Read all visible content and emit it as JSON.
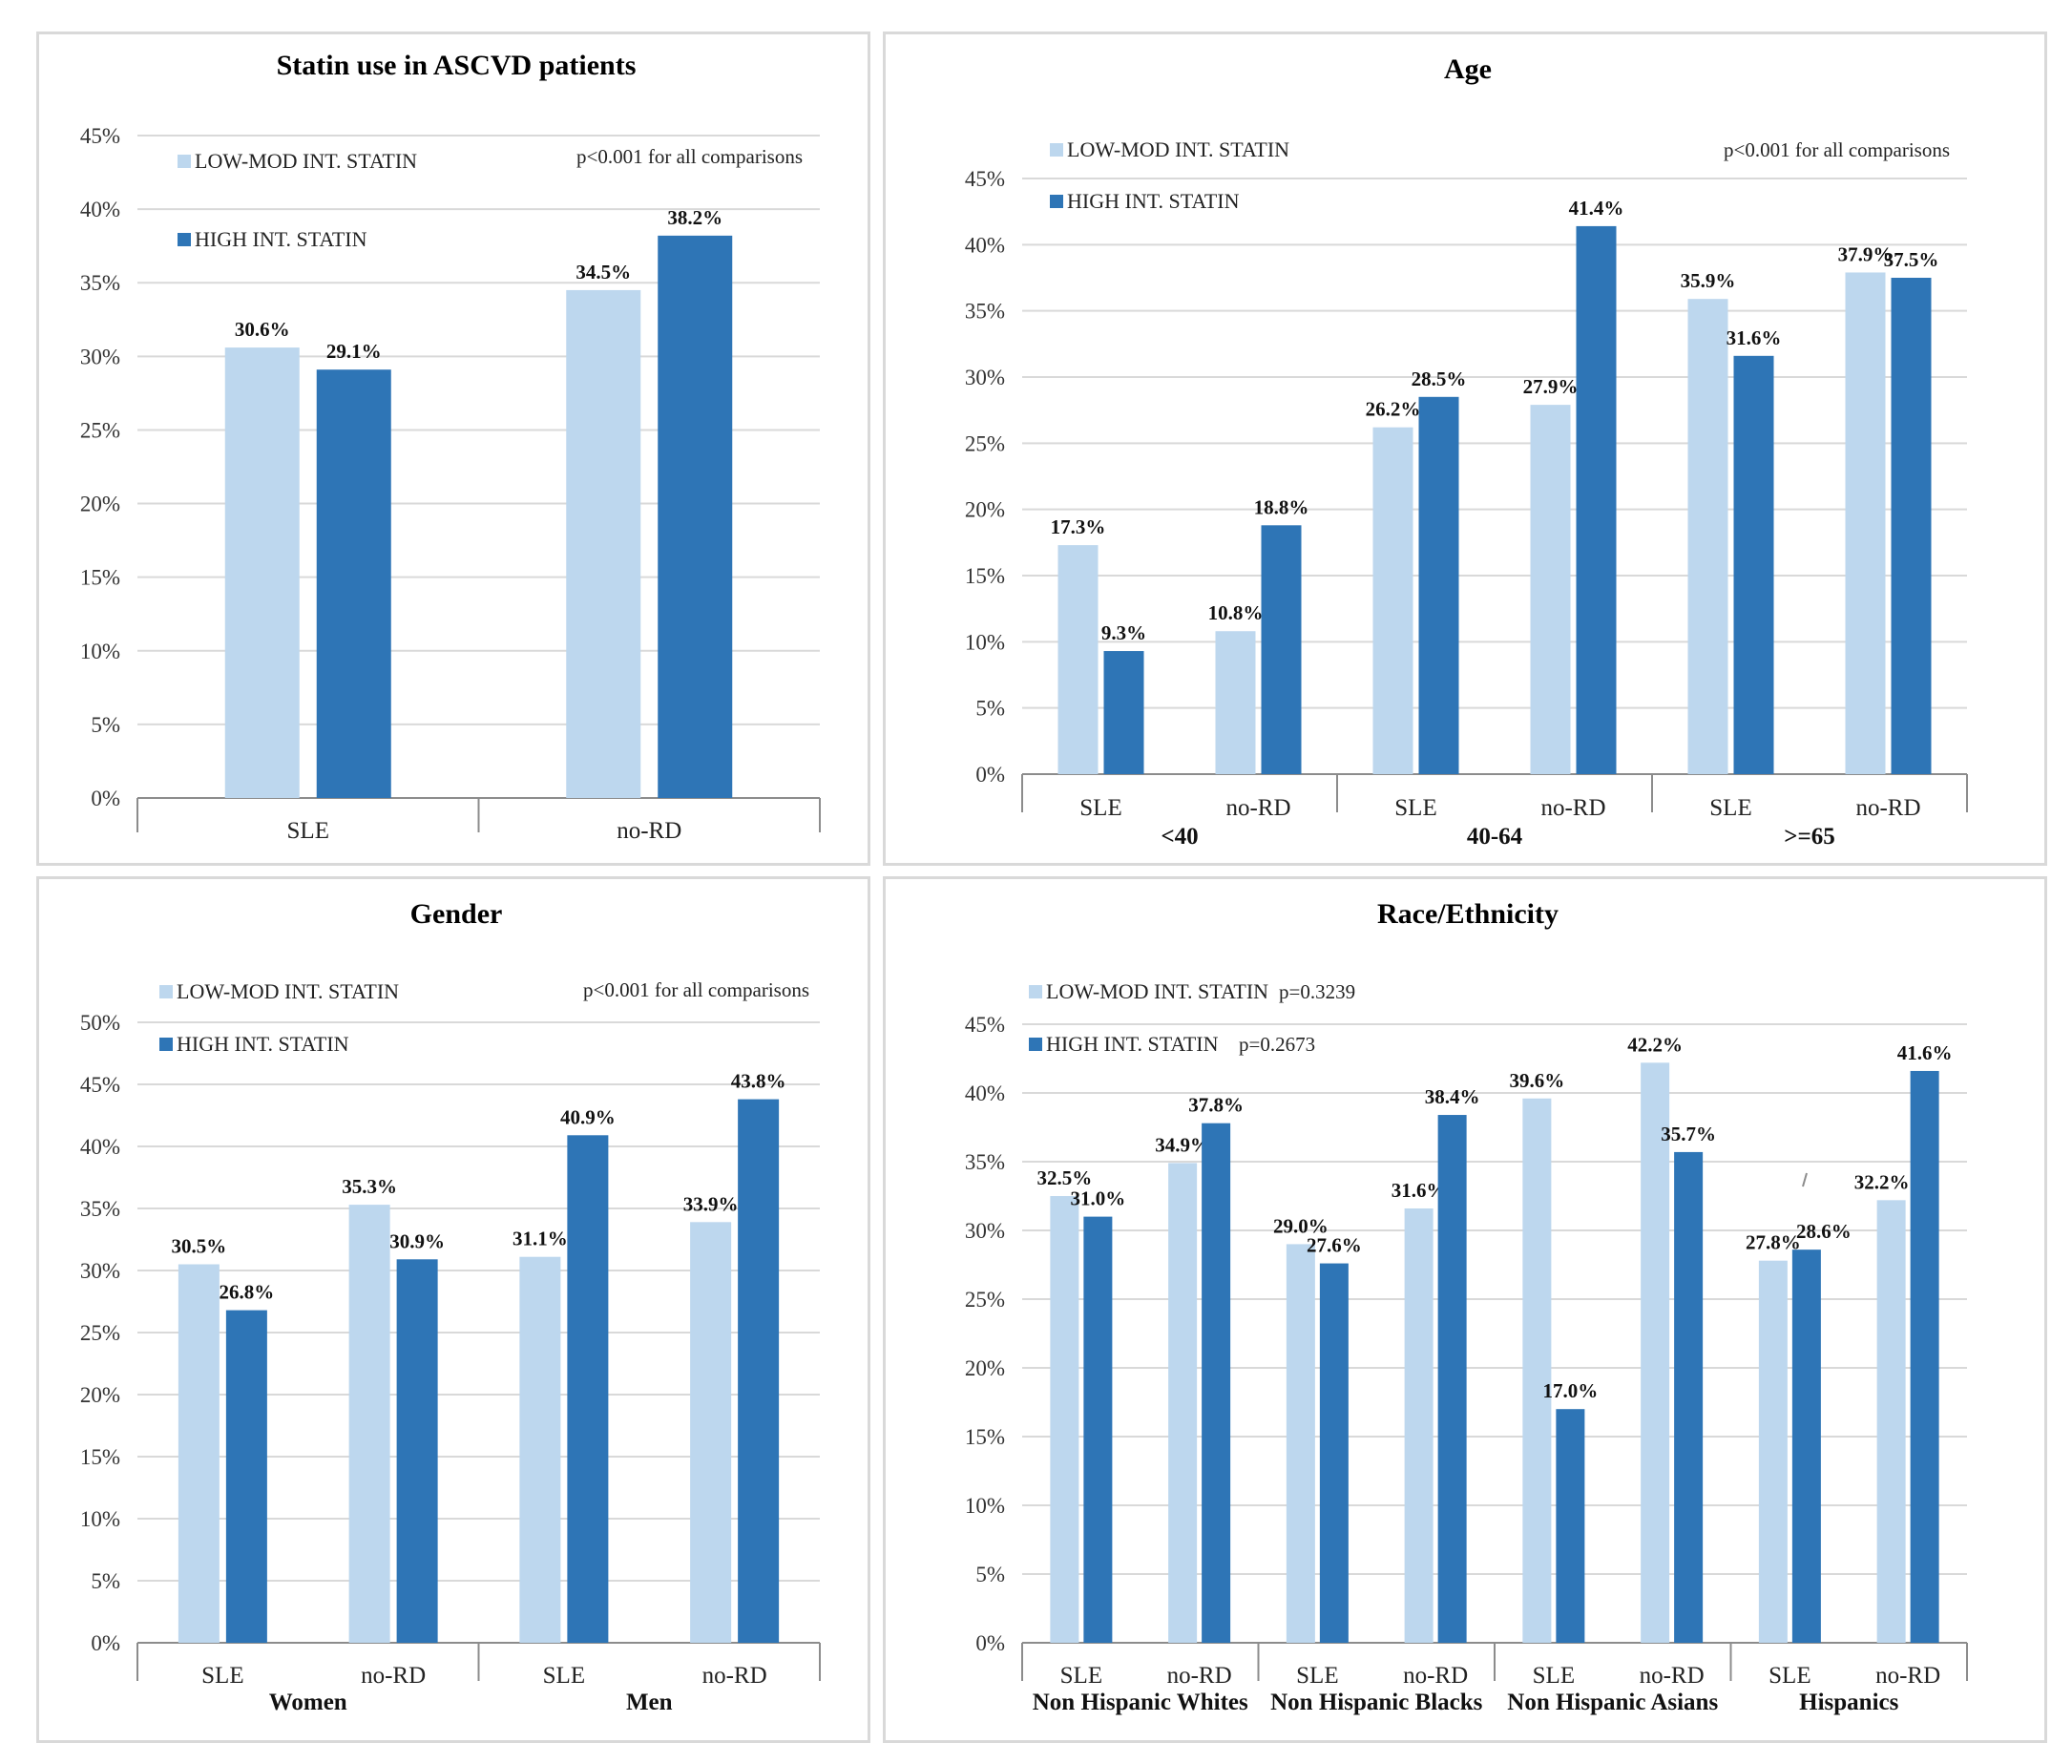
{
  "colors": {
    "low": "#bdd7ee",
    "high": "#2e75b6",
    "grid": "#d9d9d9",
    "axis": "#8c8c8c"
  },
  "legend": {
    "low": "LOW-MOD INT. STATIN",
    "high": "HIGH INT. STATIN"
  },
  "chart_data": [
    {
      "id": "statin-use",
      "type": "bar",
      "title": "Statin use in ASCVD patients",
      "note": "p<0.001 for all comparisons",
      "ylim": [
        0,
        45
      ],
      "yticks": [
        "0%",
        "5%",
        "10%",
        "15%",
        "20%",
        "25%",
        "30%",
        "35%",
        "40%",
        "45%"
      ],
      "groups": [],
      "categories": [
        "SLE",
        "no-RD"
      ],
      "series": [
        {
          "name": "LOW-MOD INT. STATIN",
          "values": [
            30.6,
            34.5
          ],
          "labels": [
            "30.6%",
            "34.5%"
          ]
        },
        {
          "name": "HIGH INT. STATIN",
          "values": [
            29.1,
            38.2
          ],
          "labels": [
            "29.1%",
            "38.2%"
          ]
        }
      ]
    },
    {
      "id": "age",
      "type": "bar",
      "title": "Age",
      "note": "p<0.001 for all comparisons",
      "ylim": [
        0,
        45
      ],
      "yticks": [
        "0%",
        "5%",
        "10%",
        "15%",
        "20%",
        "25%",
        "30%",
        "35%",
        "40%",
        "45%"
      ],
      "groups": [
        "<40",
        "40-64",
        ">=65"
      ],
      "categories": [
        "SLE",
        "no-RD",
        "SLE",
        "no-RD",
        "SLE",
        "no-RD"
      ],
      "series": [
        {
          "name": "LOW-MOD INT. STATIN",
          "values": [
            17.3,
            10.8,
            26.2,
            27.9,
            35.9,
            37.9
          ],
          "labels": [
            "17.3%",
            "10.8%",
            "26.2%",
            "27.9%",
            "35.9%",
            "37.9%"
          ]
        },
        {
          "name": "HIGH INT. STATIN",
          "values": [
            9.3,
            18.8,
            28.5,
            41.4,
            31.6,
            37.5
          ],
          "labels": [
            "9.3%",
            "18.8%",
            "28.5%",
            "41.4%",
            "31.6%",
            "37.5%"
          ]
        }
      ]
    },
    {
      "id": "gender",
      "type": "bar",
      "title": "Gender",
      "note": "p<0.001 for all comparisons",
      "ylim": [
        0,
        50
      ],
      "yticks": [
        "0%",
        "5%",
        "10%",
        "15%",
        "20%",
        "25%",
        "30%",
        "35%",
        "40%",
        "45%",
        "50%"
      ],
      "groups": [
        "Women",
        "Men"
      ],
      "categories": [
        "SLE",
        "no-RD",
        "SLE",
        "no-RD"
      ],
      "series": [
        {
          "name": "LOW-MOD INT. STATIN",
          "values": [
            30.5,
            35.3,
            31.1,
            33.9
          ],
          "labels": [
            "30.5%",
            "35.3%",
            "31.1%",
            "33.9%"
          ]
        },
        {
          "name": "HIGH INT. STATIN",
          "values": [
            26.8,
            30.9,
            40.9,
            43.8
          ],
          "labels": [
            "26.8%",
            "30.9%",
            "40.9%",
            "43.8%"
          ]
        }
      ]
    },
    {
      "id": "race",
      "type": "bar",
      "title": "Race/Ethnicity",
      "note": "",
      "legend_notes": {
        "low": "p=0.3239",
        "high": "p=0.2673"
      },
      "ylim": [
        0,
        45
      ],
      "yticks": [
        "0%",
        "5%",
        "10%",
        "15%",
        "20%",
        "25%",
        "30%",
        "35%",
        "40%",
        "45%"
      ],
      "groups": [
        "Non Hispanic Whites",
        "Non Hispanic Blacks",
        "Non Hispanic Asians",
        "Hispanics"
      ],
      "categories": [
        "SLE",
        "no-RD",
        "SLE",
        "no-RD",
        "SLE",
        "no-RD",
        "SLE",
        "no-RD"
      ],
      "series": [
        {
          "name": "LOW-MOD INT. STATIN",
          "values": [
            32.5,
            34.9,
            29.0,
            31.6,
            39.6,
            42.2,
            27.8,
            32.2
          ],
          "labels": [
            "32.5%",
            "34.9%",
            "29.0%",
            "31.6%",
            "39.6%",
            "42.2%",
            "27.8%",
            "32.2%"
          ]
        },
        {
          "name": "HIGH INT. STATIN",
          "values": [
            31.0,
            37.8,
            27.6,
            38.4,
            17.0,
            35.7,
            28.6,
            41.6
          ],
          "labels": [
            "31.0%",
            "37.8%",
            "27.6%",
            "38.4%",
            "17.0%",
            "35.7%",
            "28.6%",
            "41.6%"
          ]
        }
      ]
    }
  ]
}
